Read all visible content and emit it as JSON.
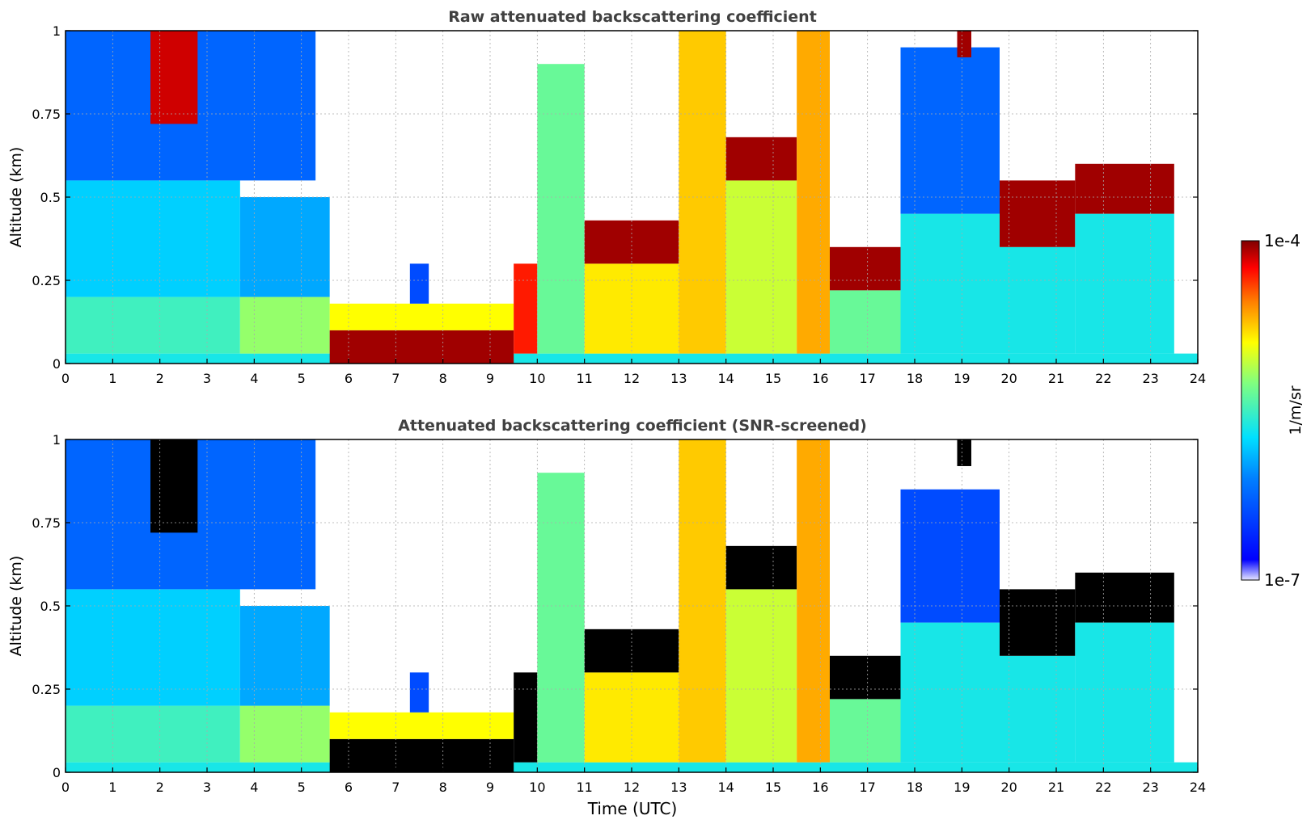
{
  "chart_data": [
    {
      "type": "heatmap",
      "title": "Raw attenuated backscattering coefficient",
      "xlabel": "",
      "ylabel": "Altitude (km)",
      "xlim": [
        0,
        24
      ],
      "ylim": [
        0,
        1
      ],
      "xticks": [
        "0",
        "1",
        "2",
        "3",
        "4",
        "5",
        "6",
        "7",
        "8",
        "9",
        "10",
        "11",
        "12",
        "13",
        "14",
        "15",
        "16",
        "17",
        "18",
        "19",
        "20",
        "21",
        "22",
        "23",
        "24"
      ],
      "yticks": [
        "0",
        "0.25",
        "0.5",
        "0.75",
        "1"
      ],
      "grid": true,
      "layers": [
        {
          "t0": 0.0,
          "t1": 24,
          "h0": 0.0,
          "h1": 0.03,
          "level": 0.45
        },
        {
          "t0": 0.0,
          "t1": 3.7,
          "h0": 0.03,
          "h1": 0.2,
          "level": 0.5
        },
        {
          "t0": 0.0,
          "t1": 3.7,
          "h0": 0.2,
          "h1": 0.55,
          "level": 0.4
        },
        {
          "t0": 0.0,
          "t1": 5.3,
          "h0": 0.55,
          "h1": 1.0,
          "level": 0.25
        },
        {
          "t0": 1.8,
          "t1": 2.8,
          "h0": 0.72,
          "h1": 1.0,
          "level": 0.95
        },
        {
          "t0": 3.7,
          "t1": 5.6,
          "h0": 0.03,
          "h1": 0.2,
          "level": 0.6
        },
        {
          "t0": 3.7,
          "t1": 5.6,
          "h0": 0.2,
          "h1": 0.5,
          "level": 0.35
        },
        {
          "t0": 5.6,
          "t1": 9.5,
          "h0": 0.0,
          "h1": 0.1,
          "level": 0.98
        },
        {
          "t0": 5.6,
          "t1": 9.5,
          "h0": 0.1,
          "h1": 0.18,
          "level": 0.7
        },
        {
          "t0": 7.3,
          "t1": 7.7,
          "h0": 0.18,
          "h1": 0.3,
          "level": 0.2
        },
        {
          "t0": 9.5,
          "t1": 10.0,
          "h0": 0.03,
          "h1": 0.3,
          "level": 0.9
        },
        {
          "t0": 10.0,
          "t1": 11.0,
          "h0": 0.03,
          "h1": 0.9,
          "level": 0.55
        },
        {
          "t0": 11.0,
          "t1": 13.0,
          "h0": 0.03,
          "h1": 0.3,
          "level": 0.72
        },
        {
          "t0": 11.0,
          "t1": 13.0,
          "h0": 0.3,
          "h1": 0.43,
          "level": 0.98
        },
        {
          "t0": 13.0,
          "t1": 14.0,
          "h0": 0.03,
          "h1": 1.0,
          "level": 0.75
        },
        {
          "t0": 14.0,
          "t1": 15.5,
          "h0": 0.03,
          "h1": 0.55,
          "level": 0.65
        },
        {
          "t0": 14.0,
          "t1": 15.5,
          "h0": 0.55,
          "h1": 0.68,
          "level": 0.98
        },
        {
          "t0": 15.5,
          "t1": 16.2,
          "h0": 0.03,
          "h1": 1.0,
          "level": 0.78
        },
        {
          "t0": 16.2,
          "t1": 17.7,
          "h0": 0.03,
          "h1": 0.22,
          "level": 0.55
        },
        {
          "t0": 16.2,
          "t1": 17.7,
          "h0": 0.22,
          "h1": 0.35,
          "level": 0.98
        },
        {
          "t0": 17.7,
          "t1": 19.8,
          "h0": 0.03,
          "h1": 0.45,
          "level": 0.45
        },
        {
          "t0": 17.7,
          "t1": 19.8,
          "h0": 0.45,
          "h1": 0.95,
          "level": 0.25
        },
        {
          "t0": 18.9,
          "t1": 19.2,
          "h0": 0.92,
          "h1": 1.0,
          "level": 0.98
        },
        {
          "t0": 19.8,
          "t1": 21.4,
          "h0": 0.03,
          "h1": 0.35,
          "level": 0.45
        },
        {
          "t0": 19.8,
          "t1": 21.4,
          "h0": 0.35,
          "h1": 0.55,
          "level": 0.98
        },
        {
          "t0": 21.4,
          "t1": 23.5,
          "h0": 0.03,
          "h1": 0.45,
          "level": 0.45
        },
        {
          "t0": 21.4,
          "t1": 23.5,
          "h0": 0.45,
          "h1": 0.6,
          "level": 0.98
        }
      ]
    },
    {
      "type": "heatmap",
      "title": "Attenuated backscattering coefficient (SNR-screened)",
      "xlabel": "Time (UTC)",
      "ylabel": "Altitude (km)",
      "xlim": [
        0,
        24
      ],
      "ylim": [
        0,
        1
      ],
      "xticks": [
        "0",
        "1",
        "2",
        "3",
        "4",
        "5",
        "6",
        "7",
        "8",
        "9",
        "10",
        "11",
        "12",
        "13",
        "14",
        "15",
        "16",
        "17",
        "18",
        "19",
        "20",
        "21",
        "22",
        "23",
        "24"
      ],
      "yticks": [
        "0",
        "0.25",
        "0.5",
        "0.75",
        "1"
      ],
      "grid": true,
      "layers": [
        {
          "t0": 0.0,
          "t1": 24,
          "h0": 0.0,
          "h1": 0.03,
          "level": 0.45
        },
        {
          "t0": 0.0,
          "t1": 3.7,
          "h0": 0.03,
          "h1": 0.2,
          "level": 0.5
        },
        {
          "t0": 0.0,
          "t1": 3.7,
          "h0": 0.2,
          "h1": 0.55,
          "level": 0.4
        },
        {
          "t0": 0.0,
          "t1": 5.3,
          "h0": 0.55,
          "h1": 1.0,
          "level": 0.25
        },
        {
          "t0": 1.8,
          "t1": 2.8,
          "h0": 0.72,
          "h1": 1.0,
          "level": -1
        },
        {
          "t0": 3.7,
          "t1": 5.6,
          "h0": 0.03,
          "h1": 0.2,
          "level": 0.6
        },
        {
          "t0": 3.7,
          "t1": 5.6,
          "h0": 0.2,
          "h1": 0.5,
          "level": 0.35
        },
        {
          "t0": 5.6,
          "t1": 9.5,
          "h0": 0.0,
          "h1": 0.1,
          "level": -1
        },
        {
          "t0": 5.6,
          "t1": 9.5,
          "h0": 0.1,
          "h1": 0.18,
          "level": 0.7
        },
        {
          "t0": 7.3,
          "t1": 7.7,
          "h0": 0.18,
          "h1": 0.3,
          "level": 0.2
        },
        {
          "t0": 9.5,
          "t1": 10.0,
          "h0": 0.03,
          "h1": 0.3,
          "level": -1
        },
        {
          "t0": 10.0,
          "t1": 11.0,
          "h0": 0.03,
          "h1": 0.9,
          "level": 0.55
        },
        {
          "t0": 11.0,
          "t1": 13.0,
          "h0": 0.03,
          "h1": 0.3,
          "level": 0.72
        },
        {
          "t0": 11.0,
          "t1": 13.0,
          "h0": 0.3,
          "h1": 0.43,
          "level": -1
        },
        {
          "t0": 13.0,
          "t1": 14.0,
          "h0": 0.03,
          "h1": 1.0,
          "level": 0.75
        },
        {
          "t0": 14.0,
          "t1": 15.5,
          "h0": 0.03,
          "h1": 0.55,
          "level": 0.65
        },
        {
          "t0": 14.0,
          "t1": 15.5,
          "h0": 0.55,
          "h1": 0.68,
          "level": -1
        },
        {
          "t0": 15.5,
          "t1": 16.2,
          "h0": 0.03,
          "h1": 1.0,
          "level": 0.78
        },
        {
          "t0": 16.2,
          "t1": 17.7,
          "h0": 0.03,
          "h1": 0.22,
          "level": 0.55
        },
        {
          "t0": 16.2,
          "t1": 17.7,
          "h0": 0.22,
          "h1": 0.35,
          "level": -1
        },
        {
          "t0": 17.7,
          "t1": 19.8,
          "h0": 0.03,
          "h1": 0.45,
          "level": 0.45
        },
        {
          "t0": 17.7,
          "t1": 19.8,
          "h0": 0.45,
          "h1": 0.85,
          "level": 0.2
        },
        {
          "t0": 18.9,
          "t1": 19.2,
          "h0": 0.92,
          "h1": 1.0,
          "level": -1
        },
        {
          "t0": 19.8,
          "t1": 21.4,
          "h0": 0.03,
          "h1": 0.35,
          "level": 0.45
        },
        {
          "t0": 19.8,
          "t1": 21.4,
          "h0": 0.35,
          "h1": 0.55,
          "level": -1
        },
        {
          "t0": 21.4,
          "t1": 23.5,
          "h0": 0.03,
          "h1": 0.45,
          "level": 0.45
        },
        {
          "t0": 21.4,
          "t1": 23.5,
          "h0": 0.45,
          "h1": 0.6,
          "level": -1
        }
      ]
    }
  ],
  "colorbar": {
    "max_label": "1e-4",
    "min_label": "1e-7",
    "unit_label": "1/m/sr",
    "colormap": "jet",
    "low_color": "#e8e8ff",
    "screened_color": "#000000"
  }
}
